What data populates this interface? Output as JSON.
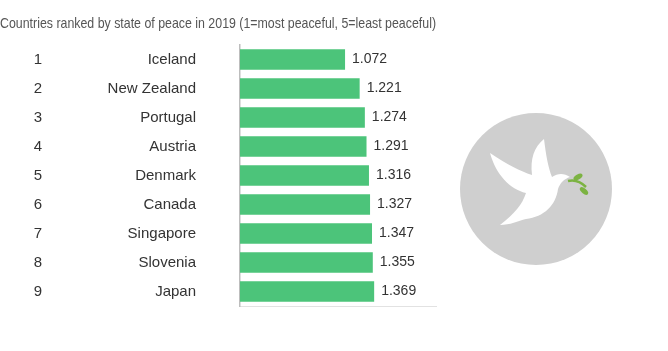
{
  "chart_data": {
    "type": "bar",
    "orientation": "horizontal",
    "title": "Countries ranked by state of peace in 2019 (1=most peaceful, 5=least peaceful)",
    "categories": [
      "Iceland",
      "New Zealand",
      "Portugal",
      "Austria",
      "Denmark",
      "Canada",
      "Singapore",
      "Slovenia",
      "Japan"
    ],
    "ranks": [
      1,
      2,
      3,
      4,
      5,
      6,
      7,
      8,
      9
    ],
    "values": [
      1.072,
      1.221,
      1.274,
      1.291,
      1.316,
      1.327,
      1.347,
      1.355,
      1.369
    ],
    "color": "#4cc47a",
    "xlim": [
      0,
      2
    ],
    "xticks": [],
    "data_labels": true,
    "tick_labels": "y",
    "grid": false
  }
}
